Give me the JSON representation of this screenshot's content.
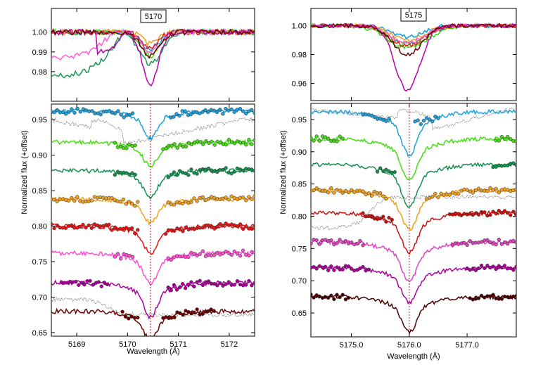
{
  "figure": {
    "ylabel": "Normalized flux (+offset)",
    "xlabel": "Wavelength (Å)"
  },
  "chart_data": [
    {
      "panel": "left",
      "type": "line",
      "box_label": "5170",
      "xlim": [
        5168.5,
        5172.5
      ],
      "top": {
        "ylim": [
          0.965,
          1.012
        ],
        "yticks": [
          0.98,
          0.99,
          1.0
        ],
        "ytick_labels": [
          "0.98",
          "0.99",
          "1.00"
        ],
        "line_center": 5170.45,
        "series": [
          {
            "color": "#00a0e6",
            "depth": 0.009,
            "width": 0.25
          },
          {
            "color": "#33dd00",
            "depth": 0.012,
            "width": 0.25
          },
          {
            "color": "#1a9850",
            "depth": 0.016,
            "width": 0.3,
            "wing": {
              "from": 5168.5,
              "to": 5169.9,
              "value": 0.978
            }
          },
          {
            "color": "#f0a020",
            "depth": 0.006,
            "width": 0.22
          },
          {
            "color": "#e02020",
            "depth": 0.008,
            "width": 0.22
          },
          {
            "color": "#ff5fd0",
            "depth": 0.01,
            "width": 0.25,
            "wing": {
              "from": 5168.5,
              "to": 5169.7,
              "value": 0.987
            }
          },
          {
            "color": "#bb00aa",
            "depth": 0.026,
            "width": 0.22,
            "wing": {
              "from": 5169.4,
              "to": 5169.9,
              "value": 0.99
            }
          },
          {
            "color": "#6b0000",
            "depth": 0.012,
            "width": 0.25
          }
        ]
      },
      "bottom": {
        "ylim": [
          0.645,
          0.972
        ],
        "yticks": [
          0.65,
          0.7,
          0.75,
          0.8,
          0.85,
          0.9,
          0.95
        ],
        "ytick_labels": [
          "0.65",
          "0.70",
          "0.75",
          "0.80",
          "0.85",
          "0.90",
          "0.95"
        ],
        "xticks": [
          5169,
          5170,
          5171,
          5172
        ],
        "xtick_labels": [
          "5169",
          "5170",
          "5171",
          "5172"
        ],
        "line_marker": 5170.45,
        "series": [
          {
            "color": "#1ea0dc",
            "base": 0.962,
            "depth": 0.028,
            "dots": [
              [
                5168.5,
                5170.1
              ],
              [
                5170.85,
                5172.5
              ]
            ]
          },
          {
            "color": "#44dd11",
            "base": 0.918,
            "depth": 0.025,
            "dots": [
              [
                5169.75,
                5170.15
              ],
              [
                5170.7,
                5172.5
              ]
            ]
          },
          {
            "color": "#159050",
            "base": 0.878,
            "depth": 0.028,
            "dots": [
              [
                5169.75,
                5170.15
              ],
              [
                5170.8,
                5172.5
              ]
            ]
          },
          {
            "color": "#f0a020",
            "base": 0.838,
            "depth": 0.025,
            "dots": [
              [
                5168.5,
                5170.2
              ],
              [
                5170.8,
                5172.5
              ]
            ]
          },
          {
            "color": "#e01818",
            "base": 0.8,
            "depth": 0.028,
            "dots": [
              [
                5168.5,
                5170.2
              ],
              [
                5170.75,
                5172.5
              ]
            ]
          },
          {
            "color": "#ff4fd0",
            "base": 0.762,
            "depth": 0.032,
            "dots": [
              [
                5169.75,
                5170.1
              ],
              [
                5170.8,
                5172.5
              ]
            ]
          },
          {
            "color": "#aa0099",
            "base": 0.72,
            "depth": 0.036,
            "dots": [
              [
                5168.7,
                5169.6
              ],
              [
                5170.8,
                5172.5
              ]
            ]
          },
          {
            "color": "#6b0000",
            "base": 0.68,
            "depth": 0.03,
            "dots": [
              [
                5169.9,
                5170.2
              ],
              [
                5170.7,
                5171.7
              ]
            ]
          }
        ],
        "gray_series": [
          {
            "kind": "upper",
            "base": 0.95,
            "low": 0.916,
            "rise": 5169.9
          },
          {
            "kind": "lower",
            "base": 0.675,
            "low": 0.697,
            "rise": 5169.6
          }
        ]
      }
    },
    {
      "panel": "right",
      "type": "line",
      "box_label": "5175",
      "xlim": [
        5174.3,
        5177.85
      ],
      "top": {
        "ylim": [
          0.948,
          1.012
        ],
        "yticks": [
          0.96,
          0.98,
          1.0
        ],
        "ytick_labels": [
          "0.96",
          "0.98",
          "1.00"
        ],
        "line_center": 5175.97,
        "series": [
          {
            "color": "#00a0e6",
            "depth": 0.008,
            "width": 0.35
          },
          {
            "color": "#33dd00",
            "depth": 0.015,
            "width": 0.5
          },
          {
            "color": "#1a9850",
            "depth": 0.012,
            "width": 0.45
          },
          {
            "color": "#f0a020",
            "depth": 0.01,
            "width": 0.4
          },
          {
            "color": "#e02020",
            "depth": 0.014,
            "width": 0.4
          },
          {
            "color": "#ff5fd0",
            "depth": 0.012,
            "width": 0.4
          },
          {
            "color": "#bb00aa",
            "depth": 0.045,
            "width": 0.3
          },
          {
            "color": "#6b0000",
            "depth": 0.02,
            "width": 0.35
          }
        ]
      },
      "bottom": {
        "ylim": [
          0.613,
          0.975
        ],
        "yticks": [
          0.65,
          0.7,
          0.75,
          0.8,
          0.85,
          0.9,
          0.95
        ],
        "ytick_labels": [
          "0.65",
          "0.70",
          "0.75",
          "0.80",
          "0.85",
          "0.90",
          "0.95"
        ],
        "xticks": [
          5175.0,
          5176.0,
          5177.0
        ],
        "xtick_labels": [
          "5175.0",
          "5176.0",
          "5177.0"
        ],
        "line_marker": 5176.0,
        "series": [
          {
            "color": "#1ea0dc",
            "base": 0.962,
            "depth": 0.05,
            "dots": [
              [
                5175.2,
                5175.65
              ],
              [
                5176.1,
                5176.5
              ]
            ]
          },
          {
            "color": "#44dd11",
            "base": 0.92,
            "depth": 0.048,
            "dots": [
              [
                5174.3,
                5174.85
              ],
              [
                5177.5,
                5177.85
              ]
            ]
          },
          {
            "color": "#159050",
            "base": 0.88,
            "depth": 0.048,
            "dots": [
              [
                5175.45,
                5175.75
              ],
              [
                5177.45,
                5177.85
              ]
            ]
          },
          {
            "color": "#f0a020",
            "base": 0.84,
            "depth": 0.045,
            "dots": [
              [
                5174.3,
                5175.6
              ],
              [
                5176.3,
                5177.85
              ]
            ]
          },
          {
            "color": "#cc1010",
            "base": 0.805,
            "depth": 0.045,
            "dots": [
              [
                5175.2,
                5175.7
              ],
              [
                5176.7,
                5177.85
              ]
            ]
          },
          {
            "color": "#dd44c0",
            "base": 0.76,
            "depth": 0.045,
            "dots": [
              [
                5174.3,
                5175.2
              ],
              [
                5176.75,
                5177.85
              ]
            ]
          },
          {
            "color": "#aa0099",
            "base": 0.72,
            "depth": 0.04,
            "dots": [
              [
                5174.3,
                5175.3
              ],
              [
                5177.0,
                5177.85
              ]
            ]
          },
          {
            "color": "#4a0000",
            "base": 0.675,
            "depth": 0.04,
            "dots": [
              [
                5174.3,
                5174.95
              ],
              [
                5177.05,
                5177.85
              ]
            ]
          }
        ],
        "gray_series": [
          {
            "kind": "upper",
            "base": 0.965,
            "low": 0.935,
            "rise": 5176.4
          },
          {
            "kind": "lower",
            "base": 0.83,
            "low": 0.782,
            "rise": 5175.3
          }
        ]
      }
    }
  ]
}
